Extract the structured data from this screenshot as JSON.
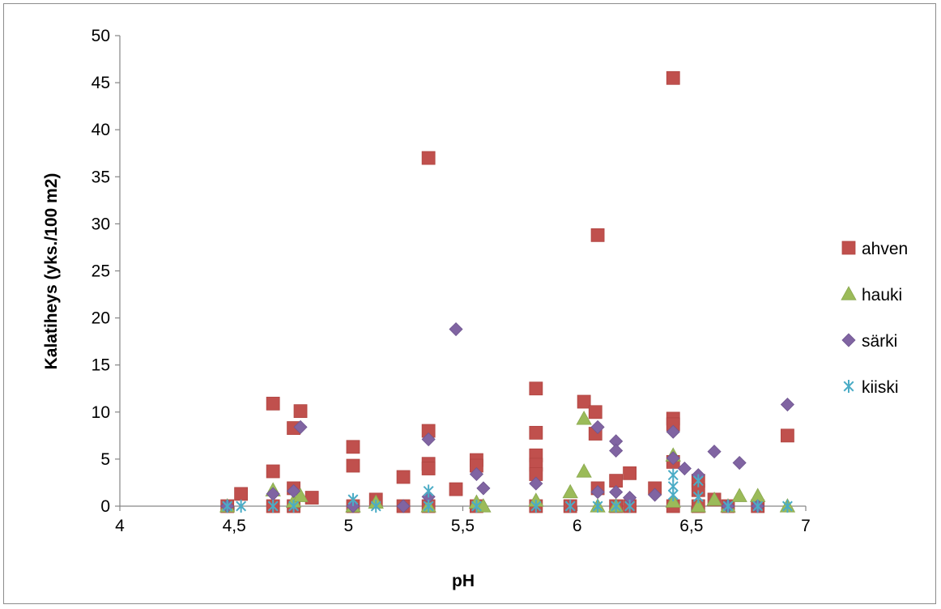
{
  "chart_data": {
    "type": "scatter",
    "title": "",
    "xlabel": "pH",
    "ylabel": "Kalatiheys (yks./100 m2)",
    "xlim": [
      4,
      7
    ],
    "ylim": [
      0,
      50
    ],
    "x_ticks": [
      "4",
      "4,5",
      "5",
      "5,5",
      "6",
      "6,5",
      "7"
    ],
    "y_ticks": [
      "0",
      "5",
      "10",
      "15",
      "20",
      "25",
      "30",
      "35",
      "40",
      "45",
      "50"
    ],
    "grid": false,
    "legend_position": "right",
    "series": [
      {
        "name": "ahven",
        "marker": "square",
        "color": "#c0504d",
        "points": [
          [
            4.47,
            0
          ],
          [
            4.53,
            1.3
          ],
          [
            4.67,
            0
          ],
          [
            4.67,
            10.9
          ],
          [
            4.67,
            3.7
          ],
          [
            4.76,
            8.3
          ],
          [
            4.76,
            1.9
          ],
          [
            4.76,
            0
          ],
          [
            4.79,
            10.1
          ],
          [
            4.84,
            0.9
          ],
          [
            5.02,
            6.3
          ],
          [
            5.02,
            4.3
          ],
          [
            5.02,
            0
          ],
          [
            5.12,
            0.7
          ],
          [
            5.24,
            3.1
          ],
          [
            5.24,
            0
          ],
          [
            5.35,
            37
          ],
          [
            5.35,
            8
          ],
          [
            5.35,
            4.5
          ],
          [
            5.35,
            4.0
          ],
          [
            5.35,
            0
          ],
          [
            5.47,
            1.8
          ],
          [
            5.56,
            4.9
          ],
          [
            5.56,
            4.3
          ],
          [
            5.56,
            0
          ],
          [
            5.82,
            12.5
          ],
          [
            5.82,
            7.8
          ],
          [
            5.82,
            5.4
          ],
          [
            5.82,
            4.4
          ],
          [
            5.82,
            3.4
          ],
          [
            5.82,
            0
          ],
          [
            6.03,
            11.1
          ],
          [
            6.08,
            10
          ],
          [
            6.08,
            7.7
          ],
          [
            6.09,
            28.8
          ],
          [
            6.09,
            1.9
          ],
          [
            6.17,
            2.7
          ],
          [
            6.23,
            3.5
          ],
          [
            6.34,
            1.9
          ],
          [
            6.42,
            45.5
          ],
          [
            6.42,
            9.3
          ],
          [
            6.42,
            8.7
          ],
          [
            6.42,
            4.7
          ],
          [
            6.42,
            0
          ],
          [
            6.53,
            2.7
          ],
          [
            6.53,
            1.7
          ],
          [
            6.6,
            0.7
          ],
          [
            6.79,
            0
          ],
          [
            6.92,
            7.5
          ],
          [
            5.97,
            0
          ],
          [
            6.17,
            0
          ],
          [
            6.23,
            0
          ],
          [
            6.53,
            0
          ],
          [
            6.66,
            0
          ]
        ]
      },
      {
        "name": "hauki",
        "marker": "triangle",
        "color": "#9bbb59",
        "points": [
          [
            4.67,
            1.7
          ],
          [
            4.76,
            0.5
          ],
          [
            4.79,
            1.1
          ],
          [
            5.02,
            0
          ],
          [
            5.12,
            0.4
          ],
          [
            5.35,
            0
          ],
          [
            5.56,
            0.4
          ],
          [
            5.59,
            0
          ],
          [
            5.82,
            0.6
          ],
          [
            5.97,
            1.5
          ],
          [
            6.03,
            9.3
          ],
          [
            6.03,
            3.7
          ],
          [
            6.09,
            0
          ],
          [
            6.17,
            0
          ],
          [
            6.42,
            5.4
          ],
          [
            6.42,
            0.5
          ],
          [
            6.53,
            0
          ],
          [
            6.6,
            0.7
          ],
          [
            6.71,
            1.1
          ],
          [
            6.79,
            1.1
          ],
          [
            6.92,
            0
          ],
          [
            4.47,
            0
          ],
          [
            6.66,
            0
          ]
        ]
      },
      {
        "name": "särki",
        "marker": "diamond",
        "color": "#8064a2",
        "points": [
          [
            4.47,
            0
          ],
          [
            4.67,
            1.3
          ],
          [
            4.76,
            1.6
          ],
          [
            4.79,
            8.4
          ],
          [
            5.02,
            0
          ],
          [
            5.35,
            7.1
          ],
          [
            5.35,
            1.0
          ],
          [
            5.47,
            18.8
          ],
          [
            5.56,
            3.4
          ],
          [
            5.59,
            1.9
          ],
          [
            5.82,
            2.4
          ],
          [
            6.09,
            8.4
          ],
          [
            6.09,
            1.5
          ],
          [
            6.17,
            6.9
          ],
          [
            6.17,
            5.9
          ],
          [
            6.17,
            1.5
          ],
          [
            6.23,
            0.9
          ],
          [
            6.42,
            7.9
          ],
          [
            6.42,
            5.1
          ],
          [
            6.47,
            4.0
          ],
          [
            6.53,
            3.3
          ],
          [
            6.6,
            5.8
          ],
          [
            6.71,
            4.6
          ],
          [
            6.92,
            10.8
          ],
          [
            6.34,
            1.2
          ],
          [
            5.24,
            0
          ],
          [
            6.66,
            0
          ],
          [
            6.79,
            0
          ]
        ]
      },
      {
        "name": "kiiski",
        "marker": "star",
        "color": "#4bacc6",
        "points": [
          [
            4.47,
            0
          ],
          [
            4.53,
            0
          ],
          [
            4.67,
            0
          ],
          [
            4.76,
            0
          ],
          [
            5.02,
            0.7
          ],
          [
            5.12,
            0
          ],
          [
            5.35,
            1.6
          ],
          [
            5.35,
            0
          ],
          [
            5.56,
            0
          ],
          [
            5.82,
            0
          ],
          [
            5.97,
            0
          ],
          [
            6.09,
            0
          ],
          [
            6.17,
            0
          ],
          [
            6.23,
            0
          ],
          [
            6.42,
            3.3
          ],
          [
            6.42,
            2.1
          ],
          [
            6.42,
            1.2
          ],
          [
            6.53,
            2.7
          ],
          [
            6.53,
            1.0
          ],
          [
            6.66,
            0
          ],
          [
            6.79,
            0
          ],
          [
            6.92,
            0
          ]
        ]
      }
    ]
  }
}
